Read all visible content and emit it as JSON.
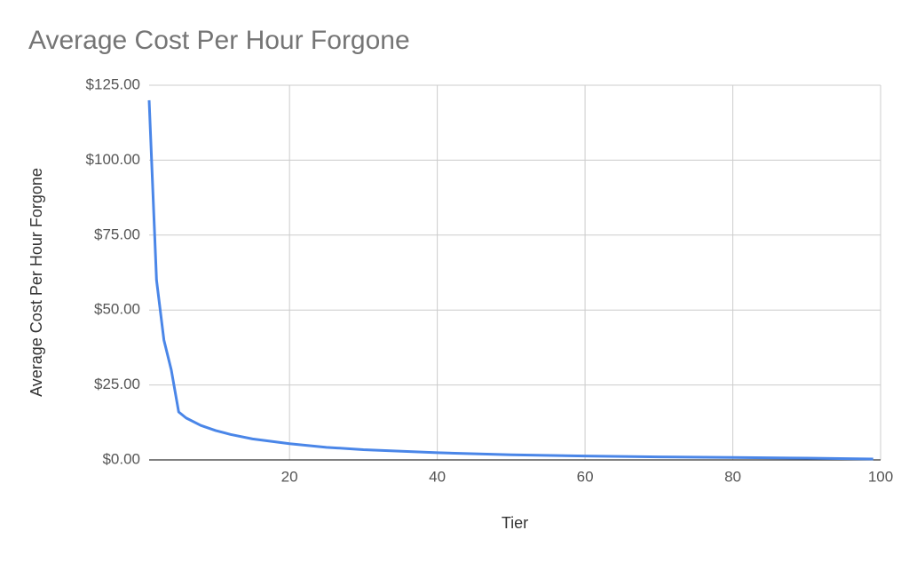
{
  "chart_data": {
    "type": "line",
    "title": "Average Cost Per Hour Forgone",
    "x_label": "Tier",
    "y_label": "Average Cost Per Hour Forgone",
    "x": [
      1,
      2,
      3,
      4,
      5,
      6,
      8,
      10,
      12,
      15,
      20,
      25,
      30,
      40,
      50,
      60,
      70,
      80,
      90,
      99
    ],
    "series": [
      {
        "name": "Average Cost Per Hour Forgone",
        "color": "#4a86e8",
        "values": [
          120,
          60,
          40,
          30,
          16,
          14,
          11.5,
          9.8,
          8.5,
          7,
          5.4,
          4.2,
          3.4,
          2.4,
          1.7,
          1.3,
          1,
          0.8,
          0.6,
          0.3
        ]
      }
    ],
    "xlim": [
      1,
      100
    ],
    "xticks": [
      20,
      40,
      60,
      80,
      100
    ],
    "ylim": [
      0,
      125
    ],
    "yticks": [
      {
        "value": 0,
        "label": "$0.00"
      },
      {
        "value": 25,
        "label": "$25.00"
      },
      {
        "value": 50,
        "label": "$50.00"
      },
      {
        "value": 75,
        "label": "$75.00"
      },
      {
        "value": 100,
        "label": "$100.00"
      },
      {
        "value": 125,
        "label": "$125.00"
      }
    ],
    "grid": true
  }
}
